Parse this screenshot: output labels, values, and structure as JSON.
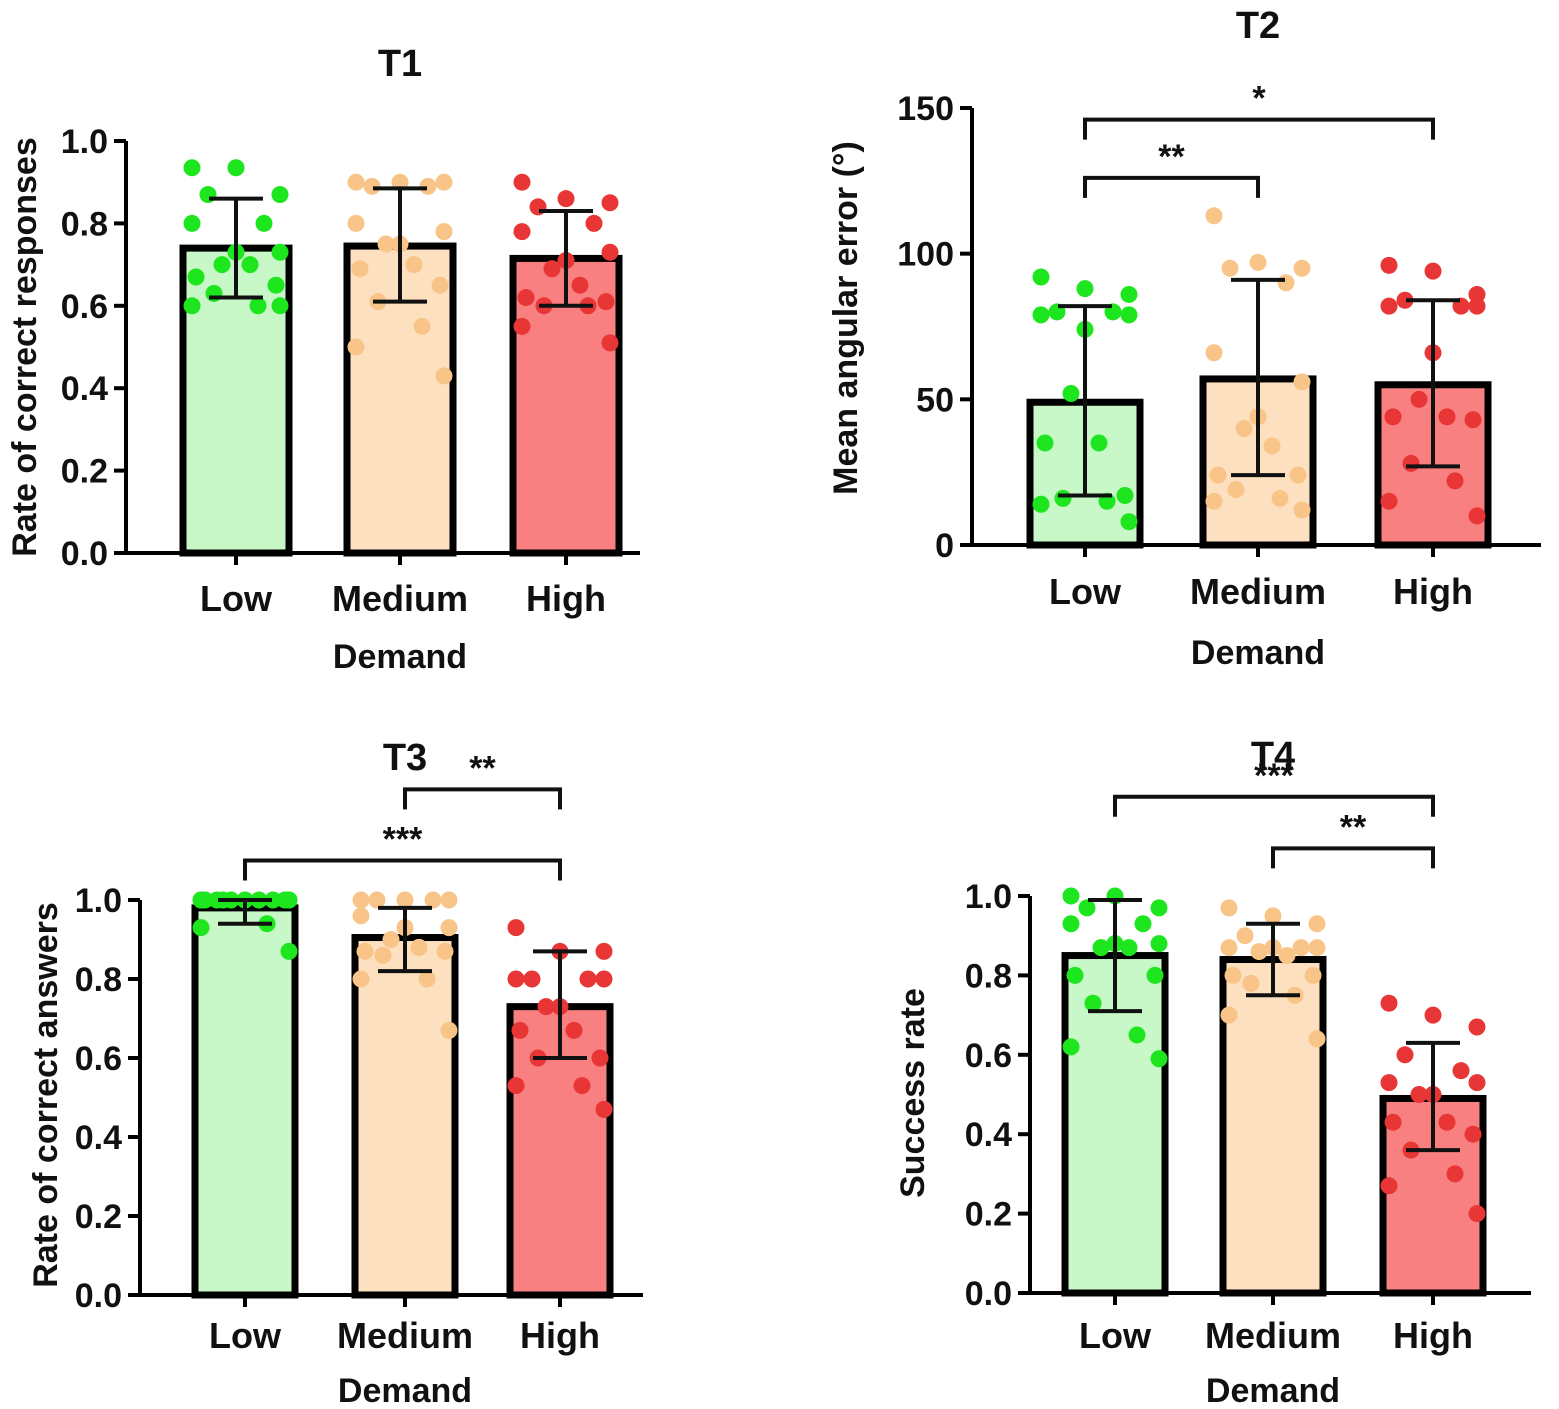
{
  "chart_data": [
    {
      "type": "bar",
      "title": "T1",
      "xlabel": "Demand",
      "ylabel": "Rate of correct responses",
      "ylim": [
        0,
        1.0
      ],
      "yticks": [
        "0.0",
        "0.2",
        "0.4",
        "0.6",
        "0.8",
        "1.0"
      ],
      "categories": [
        "Low",
        "Medium",
        "High"
      ],
      "values": [
        0.74,
        0.745,
        0.715
      ],
      "errors": [
        [
          0.62,
          0.86
        ],
        [
          0.61,
          0.885
        ],
        [
          0.6,
          0.83
        ]
      ],
      "points": [
        [
          0.935,
          0.935,
          0.87,
          0.87,
          0.8,
          0.8,
          0.73,
          0.73,
          0.7,
          0.7,
          0.67,
          0.65,
          0.63,
          0.6,
          0.6,
          0.6
        ],
        [
          0.9,
          0.9,
          0.9,
          0.89,
          0.89,
          0.8,
          0.78,
          0.75,
          0.75,
          0.7,
          0.69,
          0.65,
          0.61,
          0.55,
          0.5,
          0.43
        ],
        [
          0.9,
          0.86,
          0.85,
          0.84,
          0.8,
          0.78,
          0.73,
          0.71,
          0.69,
          0.65,
          0.62,
          0.61,
          0.6,
          0.6,
          0.55,
          0.51
        ]
      ],
      "colors": {
        "bars": [
          "#c8f7c8",
          "#fce0c0",
          "#f98080"
        ],
        "points": [
          "#1ee61e",
          "#f9c487",
          "#e83535"
        ]
      },
      "significance": []
    },
    {
      "type": "bar",
      "title": "T2",
      "xlabel": "Demand",
      "ylabel": "Mean angular error (°)",
      "ylim": [
        0,
        150
      ],
      "yticks": [
        "0",
        "50",
        "100",
        "150"
      ],
      "categories": [
        "Low",
        "Medium",
        "High"
      ],
      "values": [
        49,
        57,
        55
      ],
      "errors": [
        [
          17,
          82
        ],
        [
          24,
          91
        ],
        [
          27,
          84
        ]
      ],
      "points": [
        [
          92,
          88,
          86,
          80,
          80,
          79,
          79,
          74,
          52,
          35,
          35,
          17,
          16,
          15,
          14,
          8
        ],
        [
          113,
          97,
          95,
          95,
          90,
          66,
          56,
          44,
          40,
          34,
          24,
          24,
          19,
          16,
          15,
          12
        ],
        [
          96,
          94,
          86,
          84,
          82,
          82,
          82,
          66,
          50,
          44,
          44,
          43,
          28,
          22,
          15,
          10
        ]
      ],
      "colors": {
        "bars": [
          "#c8f7c8",
          "#fce0c0",
          "#f98080"
        ],
        "points": [
          "#1ee61e",
          "#f9c487",
          "#e83535"
        ]
      },
      "significance": [
        {
          "from": 0,
          "to": 2,
          "label": "*",
          "y": 146
        },
        {
          "from": 0,
          "to": 1,
          "label": "**",
          "y": 126
        }
      ]
    },
    {
      "type": "bar",
      "title": "T3",
      "xlabel": "Demand",
      "ylabel": "Rate of correct answers",
      "ylim": [
        0,
        1.0
      ],
      "yticks": [
        "0.0",
        "0.2",
        "0.4",
        "0.6",
        "0.8",
        "1.0"
      ],
      "categories": [
        "Low",
        "Medium",
        "High"
      ],
      "values": [
        0.98,
        0.905,
        0.73
      ],
      "errors": [
        [
          0.94,
          1.0
        ],
        [
          0.82,
          0.98
        ],
        [
          0.6,
          0.87
        ]
      ],
      "points": [
        [
          1.0,
          1.0,
          1.0,
          1.0,
          1.0,
          1.0,
          1.0,
          1.0,
          1.0,
          1.0,
          1.0,
          1.0,
          1.0,
          0.94,
          0.93,
          0.87
        ],
        [
          1.0,
          1.0,
          1.0,
          1.0,
          1.0,
          0.96,
          0.93,
          0.93,
          0.9,
          0.88,
          0.87,
          0.87,
          0.86,
          0.8,
          0.8,
          0.67
        ],
        [
          0.93,
          0.87,
          0.87,
          0.8,
          0.8,
          0.8,
          0.8,
          0.73,
          0.73,
          0.67,
          0.67,
          0.6,
          0.6,
          0.53,
          0.53,
          0.47
        ]
      ],
      "colors": {
        "bars": [
          "#c8f7c8",
          "#fce0c0",
          "#f98080"
        ],
        "points": [
          "#1ee61e",
          "#f9c487",
          "#e83535"
        ]
      },
      "significance": [
        {
          "from": 1,
          "to": 2,
          "label": "**",
          "y": 1.28
        },
        {
          "from": 0,
          "to": 2,
          "label": "***",
          "y": 1.1
        }
      ]
    },
    {
      "type": "bar",
      "title": "T4",
      "xlabel": "Demand",
      "ylabel": "Success rate",
      "ylim": [
        0,
        1.0
      ],
      "yticks": [
        "0.0",
        "0.2",
        "0.4",
        "0.6",
        "0.8",
        "1.0"
      ],
      "categories": [
        "Low",
        "Medium",
        "High"
      ],
      "values": [
        0.85,
        0.84,
        0.49
      ],
      "errors": [
        [
          0.71,
          0.99
        ],
        [
          0.75,
          0.93
        ],
        [
          0.36,
          0.63
        ]
      ],
      "points": [
        [
          1.0,
          1.0,
          0.97,
          0.97,
          0.93,
          0.93,
          0.88,
          0.88,
          0.87,
          0.87,
          0.8,
          0.8,
          0.73,
          0.65,
          0.62,
          0.59
        ],
        [
          0.97,
          0.95,
          0.93,
          0.9,
          0.87,
          0.87,
          0.87,
          0.87,
          0.86,
          0.85,
          0.8,
          0.8,
          0.78,
          0.75,
          0.7,
          0.64
        ],
        [
          0.73,
          0.7,
          0.67,
          0.6,
          0.56,
          0.53,
          0.53,
          0.5,
          0.5,
          0.43,
          0.43,
          0.4,
          0.36,
          0.3,
          0.27,
          0.2
        ]
      ],
      "colors": {
        "bars": [
          "#c8f7c8",
          "#fce0c0",
          "#f98080"
        ],
        "points": [
          "#1ee61e",
          "#f9c487",
          "#e83535"
        ]
      },
      "significance": [
        {
          "from": 0,
          "to": 2,
          "label": "***",
          "y": 1.25
        },
        {
          "from": 1,
          "to": 2,
          "label": "**",
          "y": 1.12
        }
      ]
    }
  ]
}
